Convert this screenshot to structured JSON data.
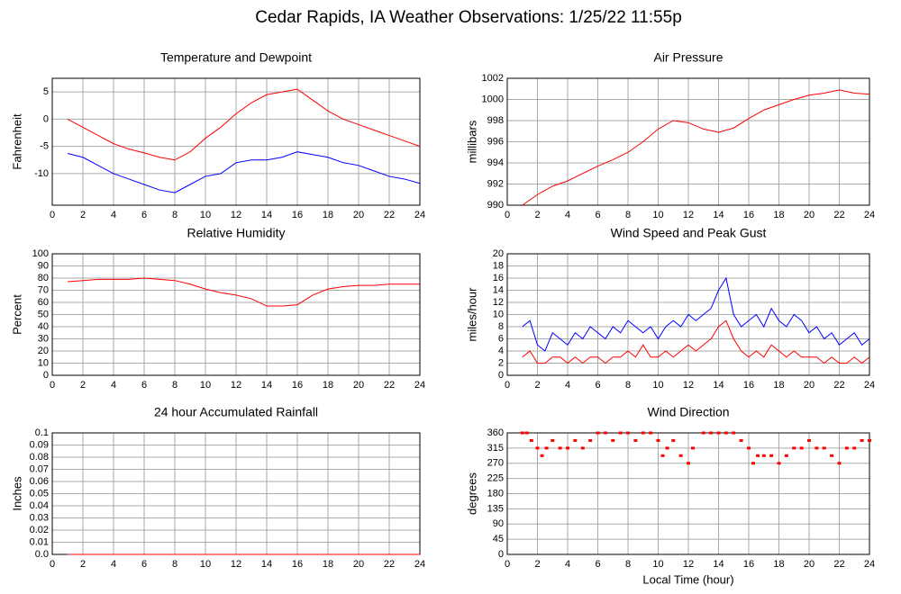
{
  "title": "Cedar Rapids, IA Weather Observations: 1/25/22 11:55p",
  "chart_data": [
    {
      "type": "line",
      "title": "Temperature and Dewpoint",
      "ylabel": "Fahrenheit",
      "x": [
        1,
        2,
        3,
        4,
        5,
        6,
        7,
        8,
        9,
        10,
        11,
        12,
        13,
        14,
        15,
        16,
        17,
        18,
        19,
        20,
        21,
        22,
        23,
        24
      ],
      "series": [
        {
          "color": "#ff0000",
          "values": [
            0,
            -1.5,
            -3,
            -4.5,
            -5.5,
            -6.2,
            -7,
            -7.5,
            -6,
            -3.5,
            -1.5,
            1,
            3,
            4.5,
            5,
            5.5,
            3.5,
            1.5,
            0,
            -1,
            -2,
            -3,
            -4,
            -5
          ]
        },
        {
          "color": "#0000ff",
          "values": [
            -6.3,
            -7,
            -8.5,
            -10,
            -11,
            -12,
            -13,
            -13.5,
            -12,
            -10.5,
            -10,
            -8,
            -7.5,
            -7.5,
            -7,
            -6,
            -6.5,
            -7,
            -8,
            -8.5,
            -9.5,
            -10.5,
            -11,
            -11.8
          ]
        }
      ],
      "xlim": [
        0,
        24
      ],
      "xticks": [
        0,
        2,
        4,
        6,
        8,
        10,
        12,
        14,
        16,
        18,
        20,
        22,
        24
      ],
      "ylim": [
        -15.8,
        7.5
      ],
      "yticks": [
        -10,
        -5,
        0,
        5
      ],
      "grid": true
    },
    {
      "type": "line",
      "title": "Air Pressure",
      "ylabel": "millibars",
      "x": [
        1,
        2,
        3,
        4,
        5,
        6,
        7,
        8,
        9,
        10,
        11,
        12,
        13,
        14,
        15,
        16,
        17,
        18,
        19,
        20,
        21,
        22,
        23,
        24
      ],
      "series": [
        {
          "color": "#ff0000",
          "values": [
            990,
            991,
            991.8,
            992.3,
            993,
            993.7,
            994.3,
            995,
            996,
            997.2,
            998,
            997.8,
            997.2,
            996.9,
            997.3,
            998.2,
            999,
            999.5,
            1000,
            1000.4,
            1000.6,
            1000.9,
            1000.6,
            1000.5
          ]
        }
      ],
      "xlim": [
        0,
        24
      ],
      "xticks": [
        0,
        2,
        4,
        6,
        8,
        10,
        12,
        14,
        16,
        18,
        20,
        22,
        24
      ],
      "ylim": [
        990,
        1002
      ],
      "yticks": [
        990,
        992,
        994,
        996,
        998,
        1000,
        1002
      ],
      "grid": true
    },
    {
      "type": "line",
      "title": "Relative Humidity",
      "ylabel": "Percent",
      "x": [
        1,
        2,
        3,
        4,
        5,
        6,
        7,
        8,
        9,
        10,
        11,
        12,
        13,
        14,
        15,
        16,
        17,
        18,
        19,
        20,
        21,
        22,
        23,
        24
      ],
      "series": [
        {
          "color": "#ff0000",
          "values": [
            77,
            78,
            79,
            79,
            79,
            80,
            79,
            78,
            75,
            71,
            68,
            66,
            63,
            57,
            57,
            58,
            66,
            71,
            73,
            74,
            74,
            75,
            75,
            75
          ]
        }
      ],
      "xlim": [
        0,
        24
      ],
      "xticks": [
        0,
        2,
        4,
        6,
        8,
        10,
        12,
        14,
        16,
        18,
        20,
        22,
        24
      ],
      "ylim": [
        0,
        100
      ],
      "yticks": [
        0,
        10,
        20,
        30,
        40,
        50,
        60,
        70,
        80,
        90,
        100
      ],
      "grid": true
    },
    {
      "type": "line",
      "title": "Wind Speed and Peak Gust",
      "ylabel": "miles/hour",
      "x": [
        1,
        1.5,
        2,
        2.5,
        3,
        3.5,
        4,
        4.5,
        5,
        5.5,
        6,
        6.5,
        7,
        7.5,
        8,
        8.5,
        9,
        9.5,
        10,
        10.5,
        11,
        11.5,
        12,
        12.5,
        13,
        13.5,
        14,
        14.5,
        15,
        15.5,
        16,
        16.5,
        17,
        17.5,
        18,
        18.5,
        19,
        19.5,
        20,
        20.5,
        21,
        21.5,
        22,
        22.5,
        23,
        23.5,
        24
      ],
      "series": [
        {
          "color": "#0000ff",
          "values": [
            8,
            9,
            5,
            4,
            7,
            6,
            5,
            7,
            6,
            8,
            7,
            6,
            8,
            7,
            9,
            8,
            7,
            8,
            6,
            8,
            9,
            8,
            10,
            9,
            10,
            11,
            14,
            16,
            10,
            8,
            9,
            10,
            8,
            11,
            9,
            8,
            10,
            9,
            7,
            8,
            6,
            7,
            5,
            6,
            7,
            5,
            6
          ]
        },
        {
          "color": "#ff0000",
          "values": [
            3,
            4,
            2,
            2,
            3,
            3,
            2,
            3,
            2,
            3,
            3,
            2,
            3,
            3,
            4,
            3,
            5,
            3,
            3,
            4,
            3,
            4,
            5,
            4,
            5,
            6,
            8,
            9,
            6,
            4,
            3,
            4,
            3,
            5,
            4,
            3,
            4,
            3,
            3,
            3,
            2,
            3,
            2,
            2,
            3,
            2,
            3
          ]
        }
      ],
      "xlim": [
        0,
        24
      ],
      "xticks": [
        0,
        2,
        4,
        6,
        8,
        10,
        12,
        14,
        16,
        18,
        20,
        22,
        24
      ],
      "ylim": [
        0,
        20
      ],
      "yticks": [
        0,
        2,
        4,
        6,
        8,
        10,
        12,
        14,
        16,
        18,
        20
      ],
      "grid": true
    },
    {
      "type": "line",
      "title": "24 hour Accumulated Rainfall",
      "ylabel": "Inches",
      "x": [
        1,
        24
      ],
      "series": [
        {
          "color": "#ff0000",
          "values": [
            0,
            0
          ]
        }
      ],
      "xlim": [
        0,
        24
      ],
      "xticks": [
        0,
        2,
        4,
        6,
        8,
        10,
        12,
        14,
        16,
        18,
        20,
        22,
        24
      ],
      "ylim": [
        0,
        0.1
      ],
      "yticks": [
        {
          "value": 0,
          "label": "0.0"
        },
        0.01,
        0.02,
        0.03,
        0.04,
        0.05,
        0.06,
        0.07,
        0.08,
        0.09,
        0.1
      ],
      "grid": true
    },
    {
      "type": "scatter",
      "title": "Wind Direction",
      "ylabel": "degrees",
      "xlabel": "Local Time (hour)",
      "x": [
        1,
        1.3,
        1.6,
        2,
        2.3,
        2.6,
        3,
        3.5,
        4,
        4.5,
        5,
        5.5,
        6,
        6.5,
        7,
        7.5,
        8,
        8.5,
        9,
        9.5,
        10,
        10.3,
        10.6,
        11,
        11.5,
        12,
        12.3,
        13,
        13.5,
        14,
        14.5,
        15,
        15.5,
        16,
        16.3,
        16.6,
        17,
        17.5,
        18,
        18.5,
        19,
        19.5,
        20,
        20.5,
        21,
        21.5,
        22,
        22.5,
        23,
        23.5,
        24
      ],
      "color": "#ff0000",
      "values": [
        360,
        360,
        337.5,
        315,
        292.5,
        315,
        337.5,
        315,
        315,
        337.5,
        315,
        337.5,
        360,
        360,
        337.5,
        360,
        360,
        337.5,
        360,
        360,
        337.5,
        292.5,
        315,
        337.5,
        292.5,
        270,
        315,
        360,
        360,
        360,
        360,
        360,
        337.5,
        315,
        270,
        292.5,
        292.5,
        292.5,
        270,
        292.5,
        315,
        315,
        337.5,
        315,
        315,
        292.5,
        270,
        315,
        315,
        337.5,
        337.5
      ],
      "xlim": [
        0,
        24
      ],
      "xticks": [
        0,
        2,
        4,
        6,
        8,
        10,
        12,
        14,
        16,
        18,
        20,
        22,
        24
      ],
      "ylim": [
        0,
        360
      ],
      "yticks": [
        0,
        45,
        90,
        135,
        180,
        225,
        270,
        315,
        360
      ],
      "grid": true
    }
  ]
}
